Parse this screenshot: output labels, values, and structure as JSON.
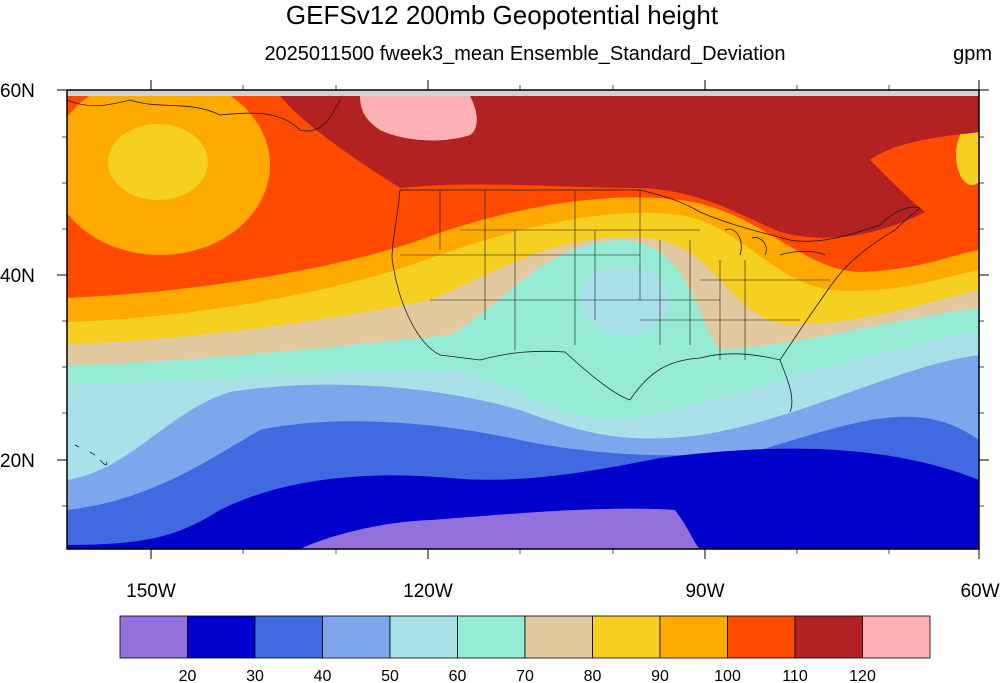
{
  "title": "GEFSv12 200mb Geopotential height",
  "subtitle": "2025011500 fweek3_mean Ensemble_Standard_Deviation",
  "units": "gpm",
  "map": {
    "lat_labels": [
      "60N",
      "40N",
      "20N"
    ],
    "lon_labels": [
      "150W",
      "120W",
      "90W",
      "60W"
    ]
  },
  "colorbar": {
    "levels": [
      "20",
      "30",
      "40",
      "50",
      "60",
      "70",
      "80",
      "90",
      "100",
      "110",
      "120"
    ],
    "colors": [
      "#9370db",
      "#0000cd",
      "#4169e1",
      "#7ea6ec",
      "#aae0e8",
      "#96ebd4",
      "#e2c9a0",
      "#f5d020",
      "#ffaa00",
      "#ff4a00",
      "#b22222",
      "#ffb0b4"
    ]
  }
}
